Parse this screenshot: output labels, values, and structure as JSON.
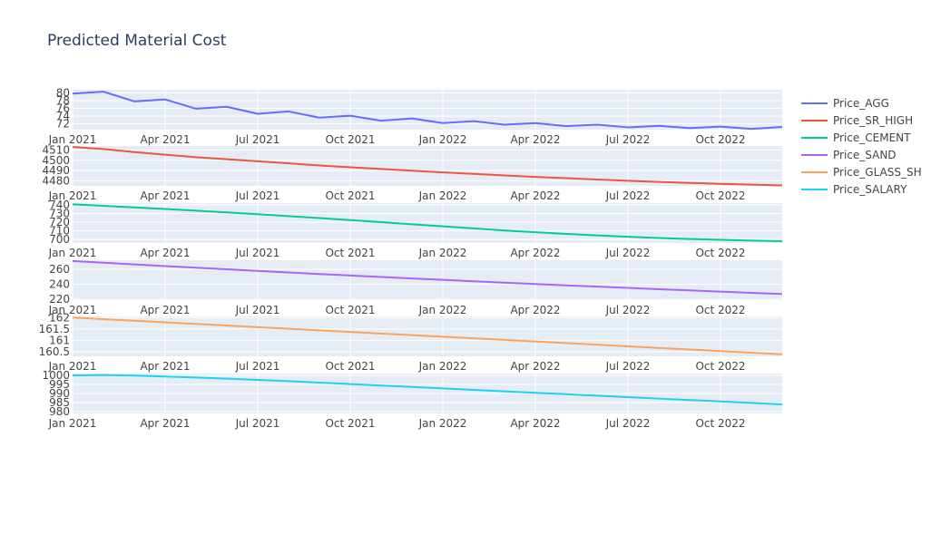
{
  "chart_data": {
    "type": "line",
    "title": "Predicted Material Cost",
    "x": [
      "2021-01",
      "2021-02",
      "2021-03",
      "2021-04",
      "2021-05",
      "2021-06",
      "2021-07",
      "2021-08",
      "2021-09",
      "2021-10",
      "2021-11",
      "2021-12",
      "2022-01",
      "2022-02",
      "2022-03",
      "2022-04",
      "2022-05",
      "2022-06",
      "2022-07",
      "2022-08",
      "2022-09",
      "2022-10",
      "2022-11",
      "2022-12"
    ],
    "x_ticks": [
      "Jan 2021",
      "Apr 2021",
      "Jul 2021",
      "Oct 2021",
      "Jan 2022",
      "Apr 2022",
      "Jul 2022",
      "Oct 2022"
    ],
    "legend_position": "top-right",
    "grid": true,
    "series": [
      {
        "name": "Price_AGG",
        "color": "#636efa",
        "ylim": [
          70.5,
          80.8
        ],
        "y_ticks": [
          {
            "v": 80,
            "label": "80"
          },
          {
            "v": 78,
            "label": "78"
          },
          {
            "v": 76,
            "label": "76"
          },
          {
            "v": 74,
            "label": "74"
          },
          {
            "v": 72,
            "label": "72"
          }
        ],
        "values": [
          79.8,
          80.3,
          77.8,
          78.3,
          75.9,
          76.4,
          74.6,
          75.2,
          73.6,
          74.1,
          72.8,
          73.4,
          72.2,
          72.7,
          71.8,
          72.2,
          71.4,
          71.8,
          71.1,
          71.5,
          70.9,
          71.3,
          70.7,
          71.2
        ]
      },
      {
        "name": "Price_SR_HIGH",
        "color": "#ef553b",
        "ylim": [
          4475,
          4514
        ],
        "y_ticks": [
          {
            "v": 4510,
            "label": "4510"
          },
          {
            "v": 4500,
            "label": "4500"
          },
          {
            "v": 4490,
            "label": "4490"
          },
          {
            "v": 4480,
            "label": "4480"
          }
        ],
        "values": [
          4513,
          4511,
          4508,
          4505.5,
          4503,
          4501,
          4499,
          4497,
          4495,
          4493.2,
          4491.5,
          4489.8,
          4488.2,
          4486.7,
          4485.2,
          4483.8,
          4482.5,
          4481.2,
          4480,
          4478.9,
          4477.9,
          4477,
          4476.2,
          4475.5
        ]
      },
      {
        "name": "Price_CEMENT",
        "color": "#00cc96",
        "ylim": [
          696,
          742
        ],
        "y_ticks": [
          {
            "v": 740,
            "label": "740"
          },
          {
            "v": 730,
            "label": "730"
          },
          {
            "v": 720,
            "label": "720"
          },
          {
            "v": 710,
            "label": "710"
          },
          {
            "v": 700,
            "label": "700"
          }
        ],
        "values": [
          740.5,
          738.8,
          737,
          735.2,
          733.3,
          731.3,
          729.2,
          727,
          724.7,
          722.4,
          720,
          717.6,
          715.2,
          712.8,
          710.4,
          708.4,
          706.5,
          704.8,
          703.2,
          701.8,
          700.6,
          699.6,
          698.8,
          698.1
        ]
      },
      {
        "name": "Price_SAND",
        "color": "#ab63fa",
        "ylim": [
          219,
          272
        ],
        "y_ticks": [
          {
            "v": 260,
            "label": "260"
          },
          {
            "v": 240,
            "label": "240"
          },
          {
            "v": 220,
            "label": "220"
          }
        ],
        "values": [
          271,
          268.7,
          266.4,
          264.2,
          262,
          259.9,
          257.8,
          255.7,
          253.7,
          251.7,
          249.7,
          247.8,
          245.9,
          244,
          242.2,
          240.4,
          238.6,
          236.9,
          235.2,
          233.5,
          231.9,
          230.3,
          228.7,
          227.2
        ]
      },
      {
        "name": "Price_GLASS_SH",
        "color": "#ffa15a",
        "ylim": [
          160.3,
          162.05
        ],
        "y_ticks": [
          {
            "v": 162,
            "label": "162"
          },
          {
            "v": 161.5,
            "label": "161.5"
          },
          {
            "v": 161,
            "label": "161"
          },
          {
            "v": 160.5,
            "label": "160.5"
          }
        ],
        "values": [
          162,
          161.93,
          161.86,
          161.79,
          161.72,
          161.65,
          161.58,
          161.51,
          161.44,
          161.37,
          161.3,
          161.23,
          161.16,
          161.09,
          161.02,
          160.95,
          160.88,
          160.81,
          160.74,
          160.67,
          160.6,
          160.53,
          160.46,
          160.39
        ]
      },
      {
        "name": "Price_SALARY",
        "color": "#19d3f3",
        "ylim": [
          979,
          1001
        ],
        "y_ticks": [
          {
            "v": 1000,
            "label": "1000"
          },
          {
            "v": 995,
            "label": "995"
          },
          {
            "v": 990,
            "label": "990"
          },
          {
            "v": 985,
            "label": "985"
          },
          {
            "v": 980,
            "label": "980"
          }
        ],
        "values": [
          1000,
          1000.2,
          999.9,
          999.4,
          998.8,
          998.2,
          997.5,
          996.8,
          996,
          995.2,
          994.4,
          993.6,
          992.8,
          992,
          991.2,
          990.4,
          989.6,
          988.8,
          988,
          987.2,
          986.4,
          985.6,
          984.8,
          984
        ]
      }
    ]
  }
}
